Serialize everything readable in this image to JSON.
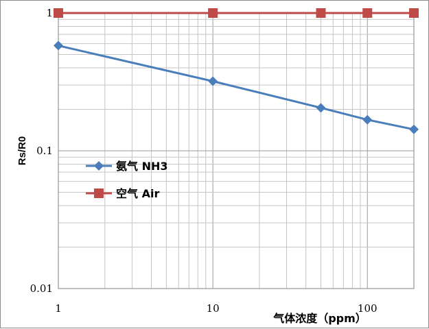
{
  "chart_data": {
    "type": "line",
    "x_scale": "log",
    "y_scale": "log",
    "xlim": [
      1,
      200
    ],
    "ylim": [
      0.01,
      1
    ],
    "x_ticks": [
      "1",
      "10",
      "100"
    ],
    "y_ticks": [
      "0.01",
      "0.1",
      "1"
    ],
    "xlabel": "气体浓度（ppm）",
    "ylabel": "Rs/R0",
    "grid": true,
    "legend_position": "left-middle",
    "series": [
      {
        "name": "氨气 NH3",
        "color": "#4a7ebb",
        "marker": "diamond",
        "x": [
          1,
          10,
          50,
          100,
          200
        ],
        "y": [
          0.58,
          0.32,
          0.205,
          0.168,
          0.143
        ]
      },
      {
        "name": "空气 Air",
        "color": "#be4b48",
        "marker": "square",
        "x": [
          1,
          10,
          50,
          100,
          200
        ],
        "y": [
          1,
          1,
          1,
          1,
          1
        ]
      }
    ]
  }
}
